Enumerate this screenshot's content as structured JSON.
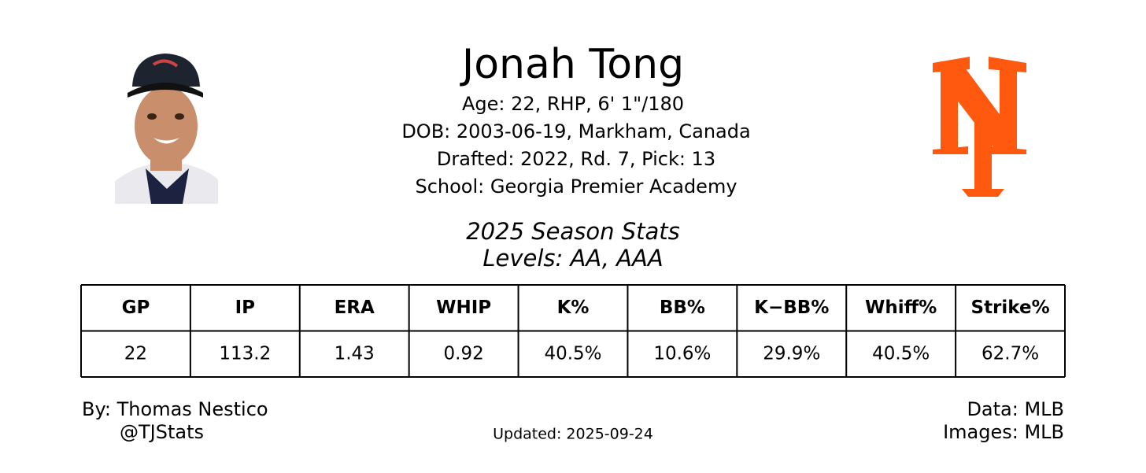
{
  "header": {
    "name": "Jonah Tong",
    "info": [
      "Age: 22, RHP, 6' 1\"/180",
      "DOB: 2003-06-19, Markham, Canada",
      "Drafted: 2022, Rd. 7, Pick: 13",
      "School: Georgia Premier Academy"
    ]
  },
  "stats": {
    "title": "2025 Season Stats",
    "levels": "Levels: AA, AAA"
  },
  "table": {
    "columns": [
      "GP",
      "IP",
      "ERA",
      "WHIP",
      "K%",
      "BB%",
      "K−BB%",
      "Whiff%",
      "Strike%"
    ],
    "rows": [
      [
        "22",
        "113.2",
        "1.43",
        "0.92",
        "40.5%",
        "10.6%",
        "29.9%",
        "40.5%",
        "62.7%"
      ]
    ]
  },
  "footer": {
    "author": "By: Thomas Nestico",
    "handle": "@TJStats",
    "updated": "Updated: 2025-09-24",
    "data_source": "Data: MLB",
    "image_source": "Images: MLB"
  }
}
